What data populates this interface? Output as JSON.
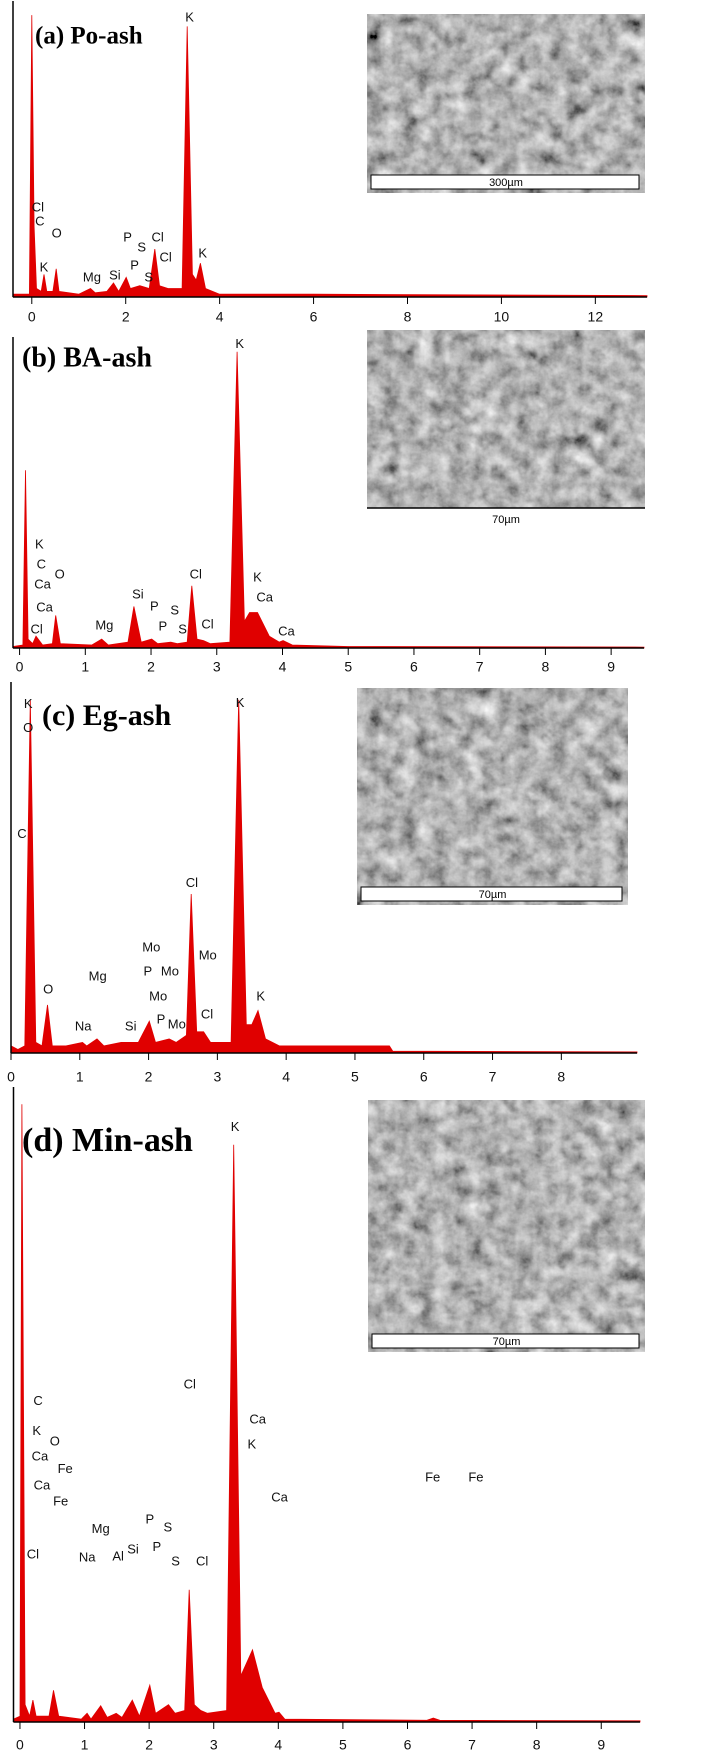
{
  "chart_data": [
    {
      "type": "spectrum",
      "title": "(a) Po-ash",
      "color": "#e00000",
      "image_scale": "300µm",
      "xlim": [
        -0.4,
        13.1
      ],
      "ylim": [
        0,
        105
      ],
      "xticks": [
        0,
        2,
        4,
        6,
        8,
        10,
        12
      ],
      "x": [
        -0.4,
        -0.05,
        0.0,
        0.05,
        0.1,
        0.2,
        0.26,
        0.32,
        0.45,
        0.52,
        0.58,
        1.0,
        1.25,
        1.35,
        1.6,
        1.74,
        1.85,
        2.01,
        2.1,
        2.3,
        2.5,
        2.62,
        2.72,
        2.9,
        3.2,
        3.31,
        3.42,
        3.5,
        3.59,
        3.7,
        4.0,
        6.0,
        13.1
      ],
      "values": [
        1,
        1,
        100,
        25,
        3,
        2,
        8,
        2,
        2,
        10,
        2,
        1,
        3,
        1.5,
        2,
        5,
        2,
        7,
        3,
        4,
        3,
        17,
        4,
        3,
        3,
        96,
        8,
        6,
        12,
        3,
        1,
        1,
        0.5
      ],
      "annotations": [
        {
          "text": "Cl",
          "x": 0.13,
          "y": 31.6
        },
        {
          "text": "C",
          "x": 0.17,
          "y": 26.6
        },
        {
          "text": "O",
          "x": 0.53,
          "y": 22.3
        },
        {
          "text": "K",
          "x": 0.26,
          "y": 10.3
        },
        {
          "text": "Mg",
          "x": 1.28,
          "y": 6.7
        },
        {
          "text": "Si",
          "x": 1.77,
          "y": 7.4
        },
        {
          "text": "P",
          "x": 2.04,
          "y": 20.9
        },
        {
          "text": "S",
          "x": 2.34,
          "y": 17.4
        },
        {
          "text": "P",
          "x": 2.19,
          "y": 11.0
        },
        {
          "text": "S",
          "x": 2.49,
          "y": 6.7
        },
        {
          "text": "Cl",
          "x": 2.68,
          "y": 20.9
        },
        {
          "text": "Cl",
          "x": 2.85,
          "y": 13.8
        },
        {
          "text": "K",
          "x": 3.36,
          "y": 98.9
        },
        {
          "text": "K",
          "x": 3.64,
          "y": 15.2
        }
      ]
    },
    {
      "type": "spectrum",
      "title": "(b) BA-ash",
      "color": "#e00000",
      "image_scale": "70µm",
      "xlim": [
        -0.1,
        9.5
      ],
      "ylim": [
        0,
        105
      ],
      "xticks": [
        0,
        1,
        2,
        3,
        4,
        5,
        6,
        7,
        8,
        9
      ],
      "x": [
        -0.1,
        0.05,
        0.09,
        0.13,
        0.2,
        0.25,
        0.35,
        0.5,
        0.55,
        0.62,
        1.1,
        1.25,
        1.35,
        1.65,
        1.74,
        1.85,
        2.01,
        2.1,
        2.3,
        2.4,
        2.55,
        2.62,
        2.7,
        2.8,
        2.9,
        3.2,
        3.31,
        3.42,
        3.5,
        3.62,
        3.8,
        3.95,
        4.01,
        4.15,
        5.0,
        9.5
      ],
      "values": [
        0.5,
        1,
        60,
        3,
        1.5,
        4,
        1,
        1.5,
        11,
        1.5,
        1,
        3,
        1,
        2,
        14,
        2,
        3,
        1.5,
        2,
        1.5,
        2,
        21,
        3,
        2.5,
        1.5,
        2,
        100,
        9,
        12,
        12,
        4,
        2,
        2.5,
        1,
        0.5,
        0.3
      ],
      "annotations": [
        {
          "text": "K",
          "x": 0.3,
          "y": 34.8
        },
        {
          "text": "C",
          "x": 0.33,
          "y": 28.0
        },
        {
          "text": "Ca",
          "x": 0.35,
          "y": 21.3
        },
        {
          "text": "O",
          "x": 0.61,
          "y": 24.7
        },
        {
          "text": "Ca",
          "x": 0.38,
          "y": 13.5
        },
        {
          "text": "Cl",
          "x": 0.26,
          "y": 6.1
        },
        {
          "text": "Mg",
          "x": 1.29,
          "y": 7.4
        },
        {
          "text": "Si",
          "x": 1.8,
          "y": 17.9
        },
        {
          "text": "P",
          "x": 2.05,
          "y": 13.9
        },
        {
          "text": "S",
          "x": 2.36,
          "y": 12.5
        },
        {
          "text": "P",
          "x": 2.18,
          "y": 7.1
        },
        {
          "text": "S",
          "x": 2.48,
          "y": 6.1
        },
        {
          "text": "Cl",
          "x": 2.68,
          "y": 24.7
        },
        {
          "text": "Cl",
          "x": 2.86,
          "y": 7.8
        },
        {
          "text": "K",
          "x": 3.35,
          "y": 102.4
        },
        {
          "text": "K",
          "x": 3.62,
          "y": 23.6
        },
        {
          "text": "Ca",
          "x": 3.73,
          "y": 16.9
        },
        {
          "text": "Ca",
          "x": 4.06,
          "y": 5.4
        }
      ]
    },
    {
      "type": "spectrum",
      "title": "(c) Eg-ash",
      "color": "#e00000",
      "image_scale": "70µm",
      "xlim": [
        0,
        9.1
      ],
      "ylim": [
        0,
        105
      ],
      "xticks": [
        0,
        1,
        2,
        3,
        4,
        5,
        6,
        7,
        8
      ],
      "x": [
        0,
        0.1,
        0.2,
        0.28,
        0.36,
        0.45,
        0.53,
        0.6,
        0.8,
        1.04,
        1.1,
        1.25,
        1.35,
        1.6,
        1.74,
        1.85,
        2.01,
        2.1,
        2.3,
        2.4,
        2.55,
        2.62,
        2.7,
        2.8,
        2.9,
        3.2,
        3.31,
        3.42,
        3.5,
        3.59,
        3.7,
        3.9,
        5.5,
        5.55,
        9.1
      ],
      "values": [
        2,
        1,
        2,
        100,
        3,
        2,
        13.6,
        2,
        2,
        3,
        2,
        4,
        2,
        3,
        3,
        3,
        9,
        3,
        4,
        3,
        5,
        45,
        6,
        6,
        3,
        3,
        100,
        8,
        8,
        12,
        4,
        2,
        2,
        0.5,
        0.3
      ],
      "annotations": [
        {
          "text": "K",
          "x": 0.25,
          "y": 98.6
        },
        {
          "text": "O",
          "x": 0.25,
          "y": 91.8
        },
        {
          "text": "C",
          "x": 0.16,
          "y": 61.8
        },
        {
          "text": "O",
          "x": 0.54,
          "y": 17.8
        },
        {
          "text": "Na",
          "x": 1.05,
          "y": 7.4
        },
        {
          "text": "Mg",
          "x": 1.26,
          "y": 21.5
        },
        {
          "text": "Si",
          "x": 1.74,
          "y": 7.4
        },
        {
          "text": "Mo",
          "x": 2.04,
          "y": 29.7
        },
        {
          "text": "P",
          "x": 1.99,
          "y": 22.9
        },
        {
          "text": "Mo",
          "x": 2.31,
          "y": 22.9
        },
        {
          "text": "Mo",
          "x": 2.14,
          "y": 15.9
        },
        {
          "text": "P",
          "x": 2.18,
          "y": 9.3
        },
        {
          "text": "Mo",
          "x": 2.41,
          "y": 7.9
        },
        {
          "text": "Cl",
          "x": 2.63,
          "y": 47.9
        },
        {
          "text": "Mo",
          "x": 2.86,
          "y": 27.5
        },
        {
          "text": "Cl",
          "x": 2.85,
          "y": 10.8
        },
        {
          "text": "K",
          "x": 3.33,
          "y": 98.9
        },
        {
          "text": "K",
          "x": 3.63,
          "y": 15.9
        }
      ]
    },
    {
      "type": "spectrum",
      "title": "(d) Min-ash",
      "color": "#e00000",
      "image_scale": "70µm",
      "xlim": [
        -0.1,
        9.6
      ],
      "ylim": [
        0,
        110
      ],
      "xticks": [
        0,
        1,
        2,
        3,
        4,
        5,
        6,
        7,
        8,
        9
      ],
      "x": [
        -0.1,
        0.0,
        0.03,
        0.08,
        0.15,
        0.2,
        0.25,
        0.45,
        0.52,
        0.6,
        0.95,
        1.04,
        1.1,
        1.25,
        1.35,
        1.49,
        1.58,
        1.74,
        1.85,
        2.01,
        2.1,
        2.3,
        2.4,
        2.55,
        2.62,
        2.7,
        2.8,
        2.9,
        3.2,
        3.31,
        3.42,
        3.5,
        3.6,
        3.75,
        3.95,
        4.01,
        4.1,
        6.3,
        6.4,
        6.5,
        9.6
      ],
      "values": [
        0.5,
        1,
        107,
        3,
        1,
        3.8,
        1,
        1,
        5.5,
        1,
        0.5,
        1.5,
        0.5,
        2.8,
        0.8,
        1.5,
        0.8,
        3.8,
        1,
        6.4,
        1.5,
        3,
        1.5,
        2,
        22.9,
        3,
        2,
        1.5,
        2,
        100,
        8,
        10,
        12.5,
        6,
        1.5,
        1.7,
        0.5,
        0.3,
        0.7,
        0.3,
        0.2
      ],
      "annotations": [
        {
          "text": "C",
          "x": 0.28,
          "y": 55.5
        },
        {
          "text": "K",
          "x": 0.26,
          "y": 50.3
        },
        {
          "text": "Ca",
          "x": 0.31,
          "y": 45.9
        },
        {
          "text": "O",
          "x": 0.54,
          "y": 48.5
        },
        {
          "text": "Fe",
          "x": 0.7,
          "y": 43.7
        },
        {
          "text": "Ca",
          "x": 0.34,
          "y": 40.9
        },
        {
          "text": "Fe",
          "x": 0.63,
          "y": 38.1
        },
        {
          "text": "Cl",
          "x": 0.2,
          "y": 28.9
        },
        {
          "text": "Na",
          "x": 1.04,
          "y": 28.4
        },
        {
          "text": "Mg",
          "x": 1.25,
          "y": 33.3
        },
        {
          "text": "Al",
          "x": 1.52,
          "y": 28.6
        },
        {
          "text": "Si",
          "x": 1.75,
          "y": 29.8
        },
        {
          "text": "P",
          "x": 2.01,
          "y": 35.0
        },
        {
          "text": "S",
          "x": 2.29,
          "y": 33.6
        },
        {
          "text": "P",
          "x": 2.12,
          "y": 30.2
        },
        {
          "text": "S",
          "x": 2.41,
          "y": 27.7
        },
        {
          "text": "Cl",
          "x": 2.63,
          "y": 58.4
        },
        {
          "text": "Cl",
          "x": 2.82,
          "y": 27.7
        },
        {
          "text": "K",
          "x": 3.33,
          "y": 103
        },
        {
          "text": "Ca",
          "x": 3.68,
          "y": 52.3
        },
        {
          "text": "K",
          "x": 3.59,
          "y": 48.0
        },
        {
          "text": "Ca",
          "x": 4.02,
          "y": 38.8
        },
        {
          "text": "Fe",
          "x": 6.39,
          "y": 42.3
        },
        {
          "text": "Fe",
          "x": 7.06,
          "y": 42.3
        }
      ]
    }
  ]
}
